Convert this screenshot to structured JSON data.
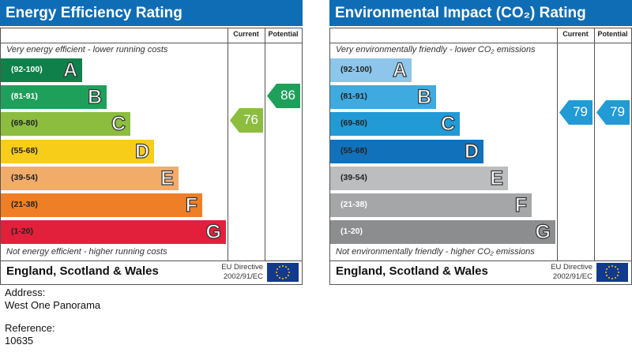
{
  "chart_data": [
    {
      "type": "bar",
      "title": "Energy Efficiency Rating",
      "columns": [
        "Current",
        "Potential"
      ],
      "top_note": "Very energy efficient - lower running costs",
      "bottom_note": "Not energy efficient - higher running costs",
      "categories": [
        "A",
        "B",
        "C",
        "D",
        "E",
        "F",
        "G"
      ],
      "ranges": [
        "(92-100)",
        "(81-91)",
        "(69-80)",
        "(55-68)",
        "(39-54)",
        "(21-38)",
        "(1-20)"
      ],
      "colors": [
        "#10804a",
        "#1ea05a",
        "#8cbd3f",
        "#f7cd1a",
        "#f2ac6a",
        "#ee7f26",
        "#e2203b"
      ],
      "range_colors": [
        "#fff",
        "#fff",
        "#222",
        "#222",
        "#222",
        "#222",
        "#222"
      ],
      "current": {
        "value": 76,
        "band": "C",
        "color": "#8cbd3f"
      },
      "potential": {
        "value": 86,
        "band": "B",
        "color": "#1ea05a"
      },
      "region": "England, Scotland & Wales",
      "directive": [
        "EU Directive",
        "2002/91/EC"
      ]
    },
    {
      "type": "bar",
      "title": "Environmental Impact (CO₂) Rating",
      "columns": [
        "Current",
        "Potential"
      ],
      "top_note": "Very environmentally friendly - lower CO₂ emissions",
      "bottom_note": "Not environmentally friendly - higher CO₂ emissions",
      "categories": [
        "A",
        "B",
        "C",
        "D",
        "E",
        "F",
        "G"
      ],
      "ranges": [
        "(92-100)",
        "(81-91)",
        "(69-80)",
        "(55-68)",
        "(39-54)",
        "(21-38)",
        "(1-20)"
      ],
      "colors": [
        "#8dc6ea",
        "#3eaae0",
        "#219ad6",
        "#1172bb",
        "#bcbdbf",
        "#a5a6a8",
        "#8c8d8f"
      ],
      "range_colors": [
        "#222",
        "#222",
        "#222",
        "#222",
        "#222",
        "#fff",
        "#fff"
      ],
      "current": {
        "value": 79,
        "band": "C",
        "color": "#219ad6"
      },
      "potential": {
        "value": 79,
        "band": "C",
        "color": "#219ad6"
      },
      "region": "England, Scotland & Wales",
      "directive": [
        "EU Directive",
        "2002/91/EC"
      ]
    }
  ],
  "address": {
    "label": "Address:",
    "value": "West One Panorama"
  },
  "reference": {
    "label": "Reference:",
    "value": "10635"
  }
}
